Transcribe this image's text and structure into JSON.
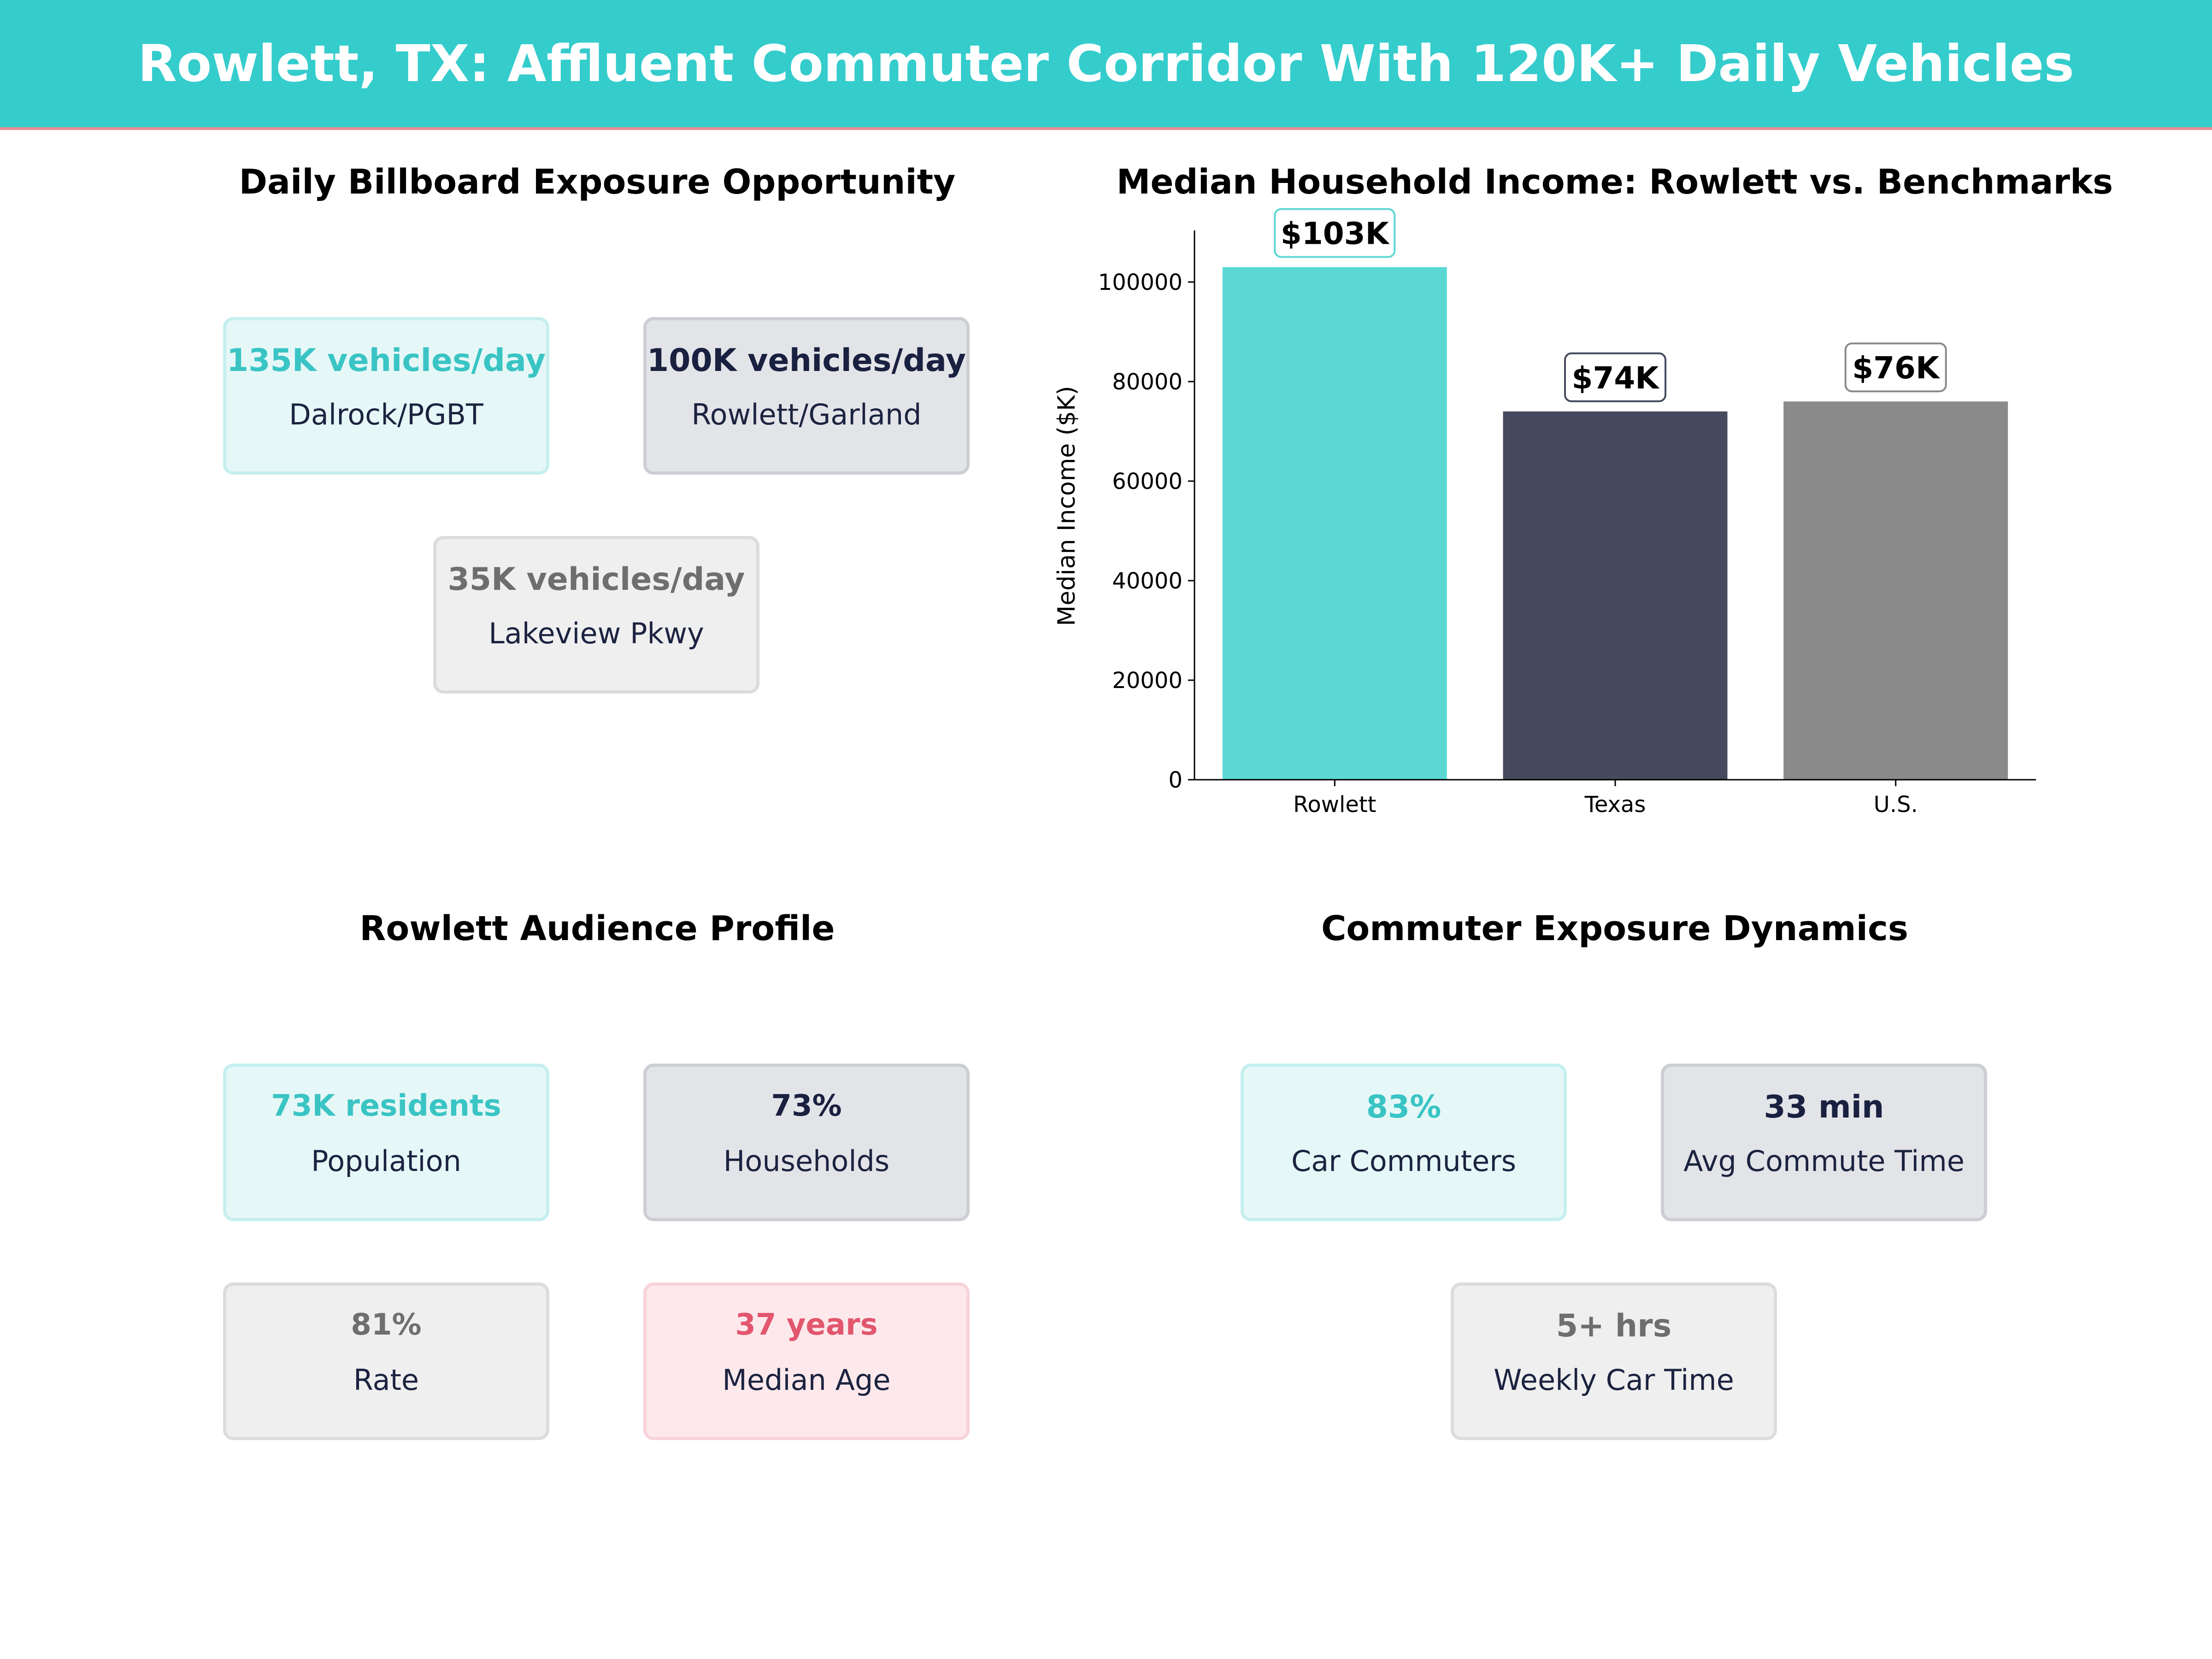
{
  "title": "Rowlett, TX: Affluent Commuter Corridor With 120K+ Daily Vehicles",
  "colors": {
    "teal": "#5CD8D4",
    "navy": "#454A5E",
    "gray": "#8A8A8A",
    "banner": "#35CCCC"
  },
  "exposure": {
    "title": "Daily Billboard Exposure Opportunity",
    "cards": [
      {
        "value": "135K vehicles/day",
        "label": "Dalrock/PGBT"
      },
      {
        "value": "100K vehicles/day",
        "label": "Rowlett/Garland"
      },
      {
        "value": "35K vehicles/day",
        "label": "Lakeview Pkwy"
      }
    ]
  },
  "audience": {
    "title": "Rowlett Audience Profile",
    "cards": [
      {
        "value": "73K residents",
        "label": "Population"
      },
      {
        "value": "73%",
        "label": "Households"
      },
      {
        "value": "81%",
        "label": "Rate"
      },
      {
        "value": "37 years",
        "label": "Median Age"
      }
    ]
  },
  "commuter": {
    "title": "Commuter Exposure Dynamics",
    "cards": [
      {
        "value": "83%",
        "label": "Car Commuters"
      },
      {
        "value": "33 min",
        "label": "Avg Commute Time"
      },
      {
        "value": "5+ hrs",
        "label": "Weekly Car Time"
      }
    ]
  },
  "chart_data": {
    "type": "bar",
    "title": "Median Household Income: Rowlett vs. Benchmarks",
    "categories": [
      "Rowlett",
      "Texas",
      "U.S."
    ],
    "values": [
      103000,
      74000,
      76000
    ],
    "data_labels": [
      "$103K",
      "$74K",
      "$76K"
    ],
    "bar_colors": [
      "#5CD8D4",
      "#454A5E",
      "#8A8A8A"
    ],
    "label_border_colors": [
      "#5CD8D4",
      "#454A5E",
      "#8A8A8A"
    ],
    "xlabel": "",
    "ylabel": "Median Income ($K)",
    "ylim": [
      0,
      110000
    ],
    "yticks": [
      0,
      20000,
      40000,
      60000,
      80000,
      100000
    ],
    "grid": false
  }
}
